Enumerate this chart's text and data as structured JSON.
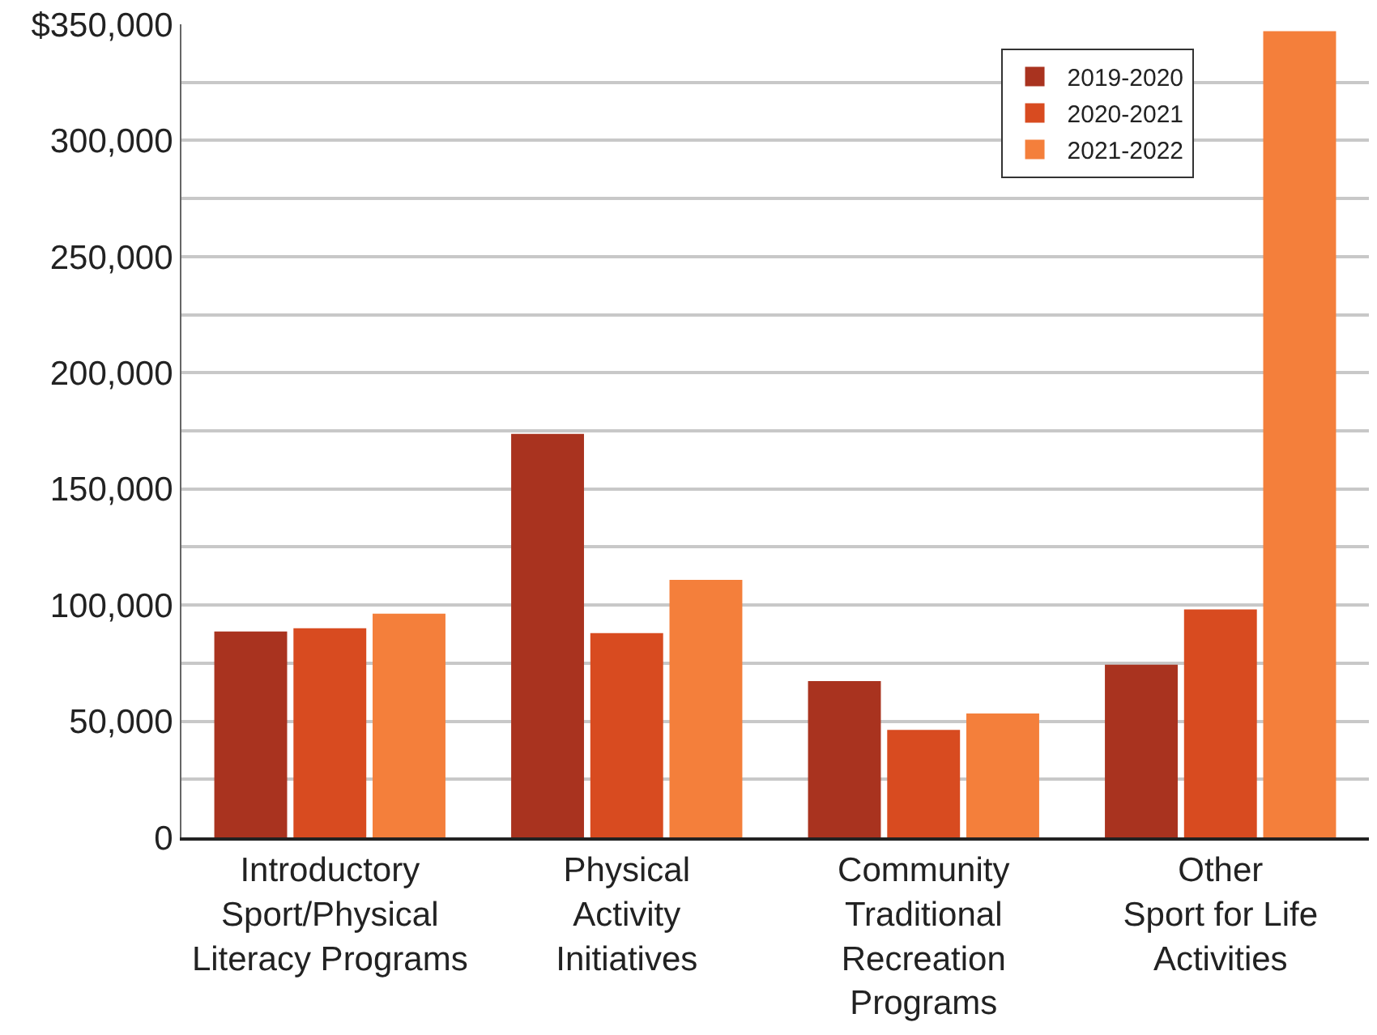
{
  "chart_data": {
    "type": "bar",
    "categories": [
      "Introductory\nSport/Physical\nLiteracy Programs",
      "Physical\nActivity\nInitiatives",
      "Community\nTraditional\nRecreation\nPrograms",
      "Other\nSport for Life\nActivities"
    ],
    "series": [
      {
        "name": "2019-2020",
        "color": "#a9331f",
        "values": [
          88600,
          173700,
          67300,
          74300
        ]
      },
      {
        "name": "2020-2021",
        "color": "#d84b20",
        "values": [
          90000,
          87900,
          46300,
          98100
        ]
      },
      {
        "name": "2021-2022",
        "color": "#f47f3b",
        "values": [
          96300,
          110900,
          53300,
          347000
        ]
      }
    ],
    "ylim": [
      0,
      350000
    ],
    "yticks": [
      0,
      {
        "value": 25000,
        "label": null
      },
      {
        "value": 50000,
        "label": "50,000"
      },
      {
        "value": 75000,
        "label": null
      },
      {
        "value": 100000,
        "label": "100,000"
      },
      {
        "value": 125000,
        "label": null
      },
      {
        "value": 150000,
        "label": "150,000"
      },
      {
        "value": 175000,
        "label": null
      },
      {
        "value": 200000,
        "label": "200,000"
      },
      {
        "value": 225000,
        "label": null
      },
      {
        "value": 250000,
        "label": "250,000"
      },
      {
        "value": 275000,
        "label": null
      },
      {
        "value": 300000,
        "label": "300,000"
      },
      {
        "value": 325000,
        "label": null
      },
      {
        "value": 350000,
        "label": "$350,000"
      }
    ],
    "grid": "y",
    "legend": "top right"
  }
}
